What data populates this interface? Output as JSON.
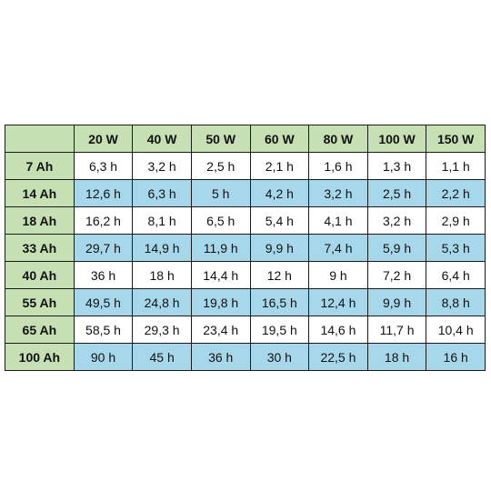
{
  "table": {
    "columns": [
      "20 W",
      "40 W",
      "50 W",
      "60 W",
      "80 W",
      "100 W",
      "150 W"
    ],
    "rows": [
      {
        "label": "7 Ah",
        "style": "white",
        "values": [
          "6,3 h",
          "3,2 h",
          "2,5 h",
          "2,1 h",
          "1,6 h",
          "1,3 h",
          "1,1 h"
        ]
      },
      {
        "label": "14 Ah",
        "style": "blue",
        "values": [
          "12,6 h",
          "6,3 h",
          "5 h",
          "4,2 h",
          "3,2 h",
          "2,5 h",
          "2,2 h"
        ]
      },
      {
        "label": "18 Ah",
        "style": "white",
        "values": [
          "16,2 h",
          "8,1 h",
          "6,5 h",
          "5,4 h",
          "4,1 h",
          "3,2 h",
          "2,9 h"
        ]
      },
      {
        "label": "33 Ah",
        "style": "blue",
        "values": [
          "29,7 h",
          "14,9 h",
          "11,9 h",
          "9,9 h",
          "7,4 h",
          "5,9 h",
          "5,3 h"
        ]
      },
      {
        "label": "40 Ah",
        "style": "white",
        "values": [
          "36 h",
          "18 h",
          "14,4 h",
          "12 h",
          "9 h",
          "7,2 h",
          "6,4 h"
        ]
      },
      {
        "label": "55 Ah",
        "style": "blue",
        "values": [
          "49,5 h",
          "24,8 h",
          "19,8 h",
          "16,5 h",
          "12,4 h",
          "9,9 h",
          "8,8 h"
        ]
      },
      {
        "label": "65 Ah",
        "style": "white",
        "values": [
          "58,5 h",
          "29,3 h",
          "23,4 h",
          "19,5 h",
          "14,6 h",
          "11,7 h",
          "10,4 h"
        ]
      },
      {
        "label": "100 Ah",
        "style": "blue",
        "values": [
          "90 h",
          "45 h",
          "36 h",
          "30 h",
          "22,5 h",
          "18 h",
          "16 h"
        ]
      }
    ]
  },
  "colors": {
    "header_green": "#c6e0b4",
    "row_blue": "#a7d7ea",
    "row_white": "#ffffff",
    "border": "#1a1a1a"
  }
}
